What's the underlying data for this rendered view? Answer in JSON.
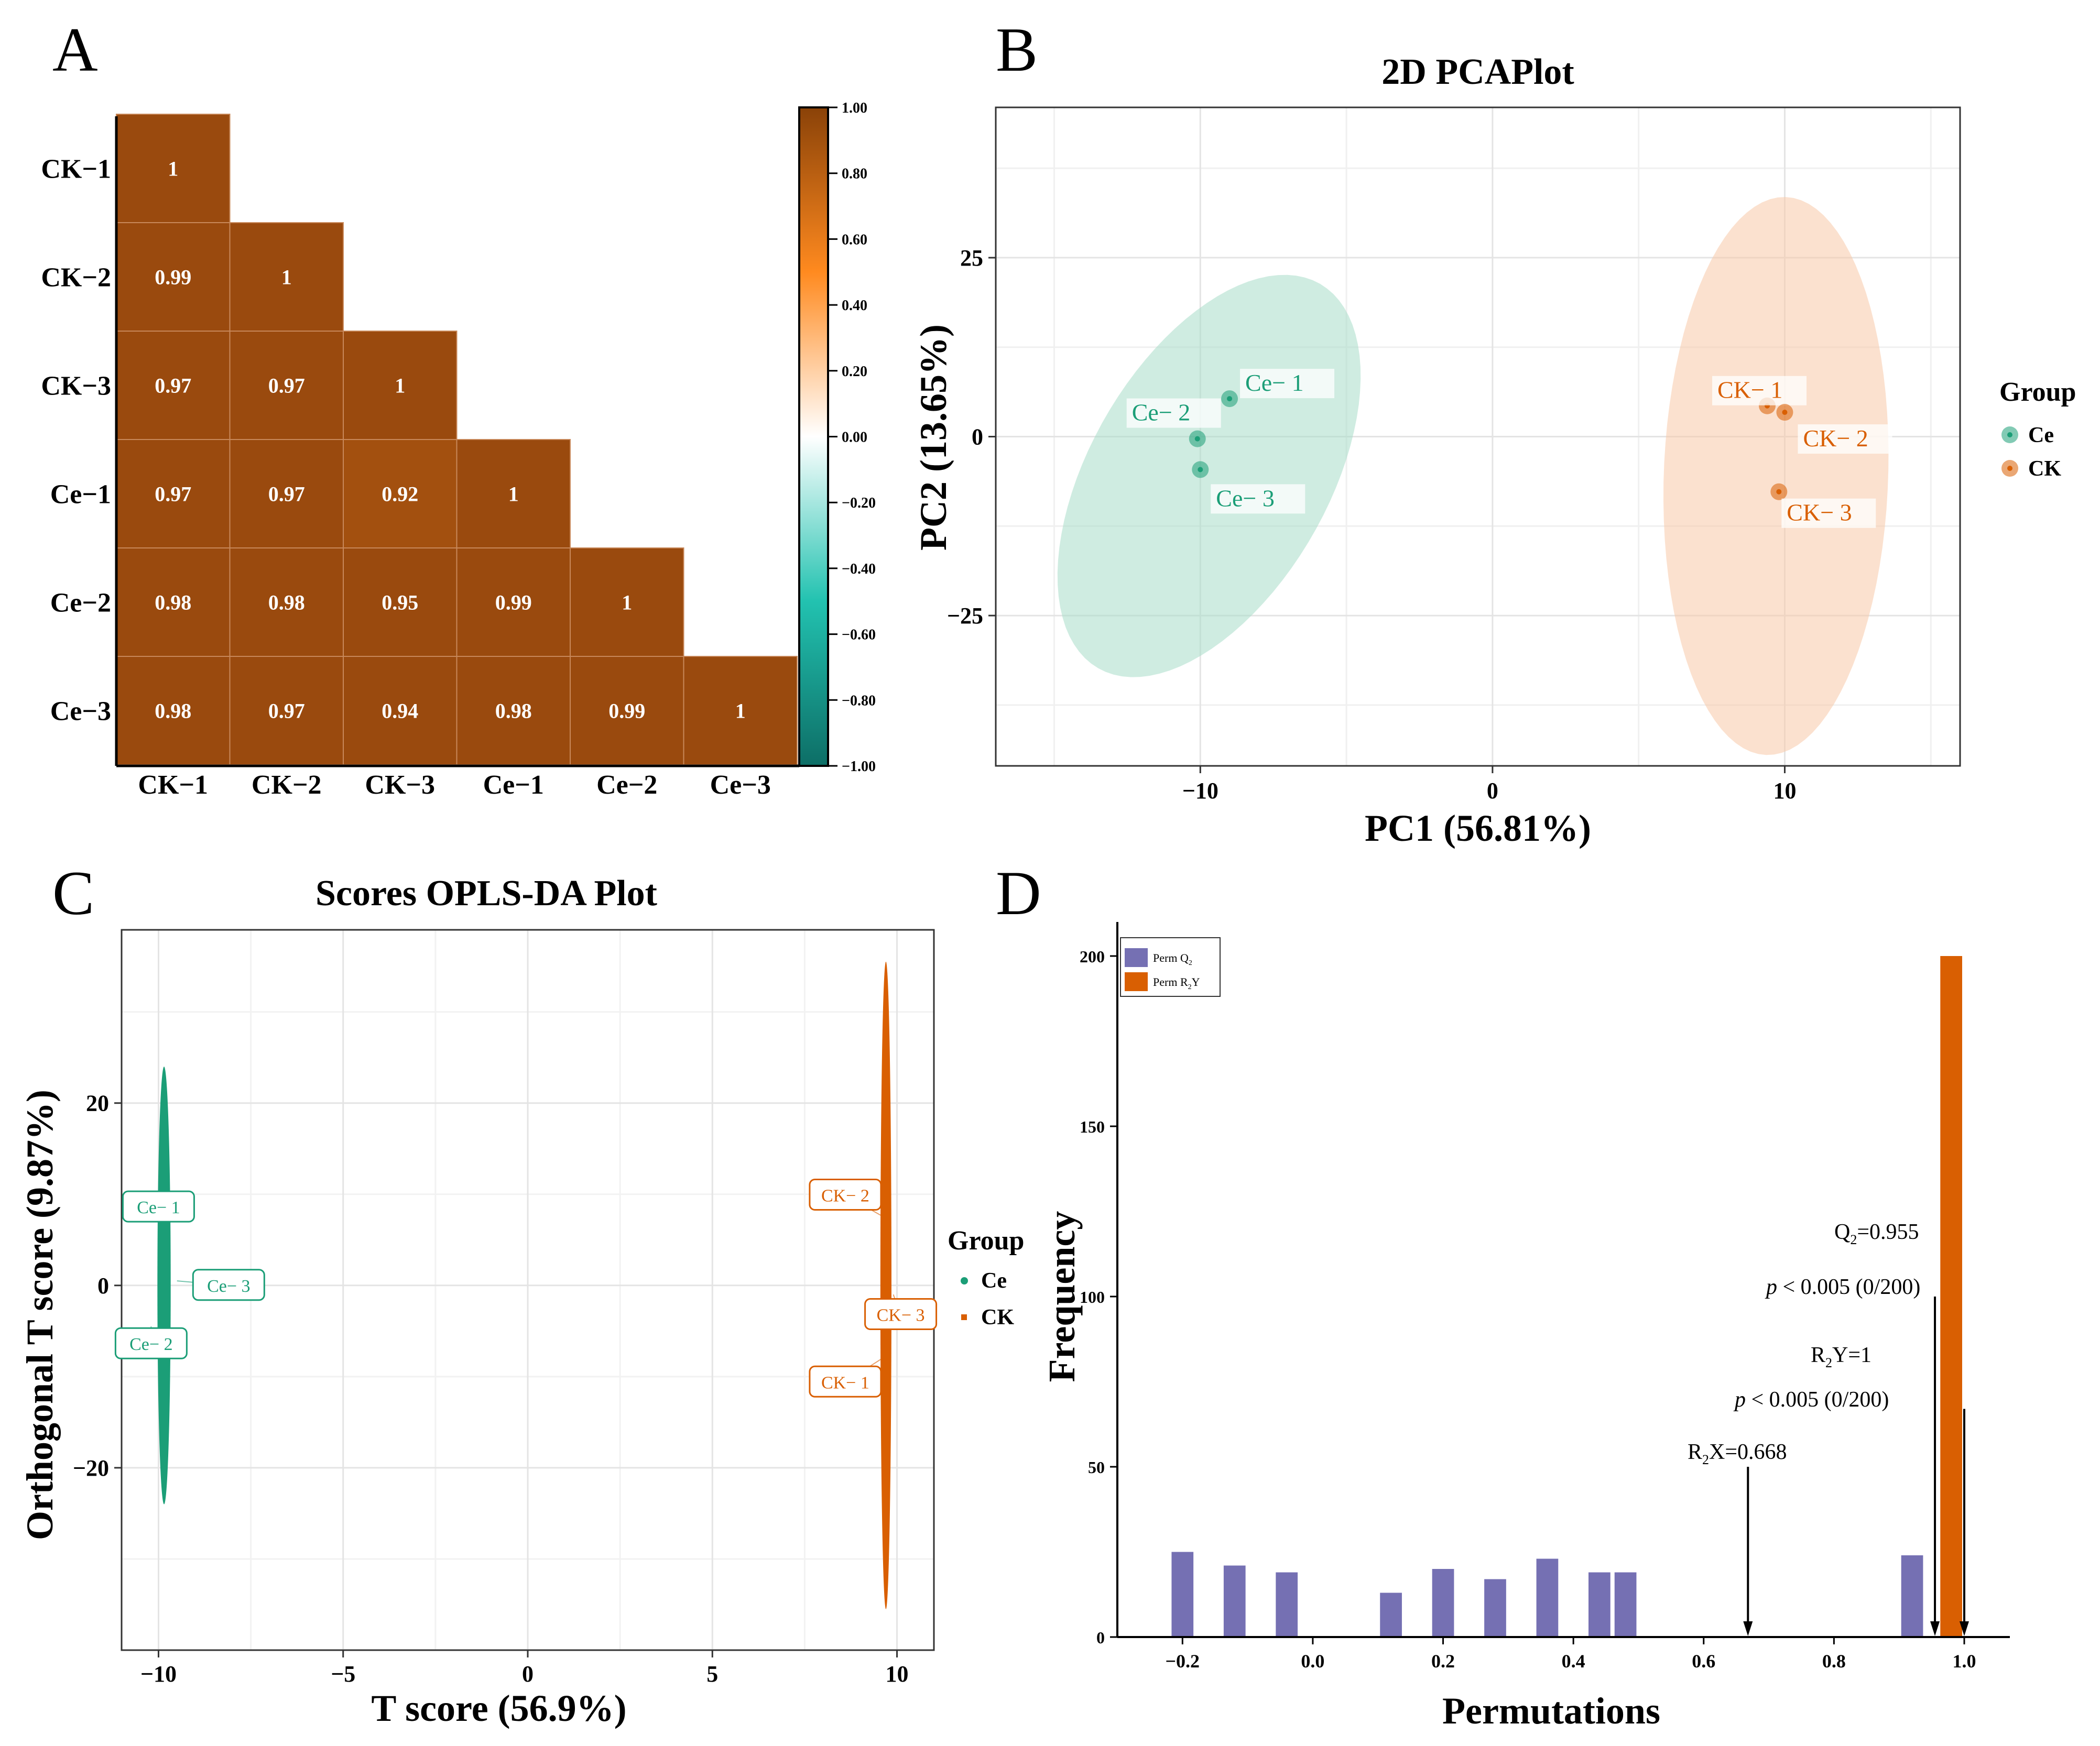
{
  "panels": {
    "A": "A",
    "B": "B",
    "C": "C",
    "D": "D"
  },
  "colors": {
    "cell": "#9a4a0e",
    "cell_dark": "#a3500f",
    "ce_green": "#1b9e77",
    "ck_orange": "#d95f02",
    "ce_light": "#a8dcc8",
    "ck_light": "#f7c9a8",
    "perm_q2": "#7570b3",
    "perm_r2y": "#d95f02"
  },
  "chart_data": [
    {
      "id": "A",
      "type": "heatmap",
      "title": "",
      "labels": [
        "CK−1",
        "CK−2",
        "CK−3",
        "Ce−1",
        "Ce−2",
        "Ce−3"
      ],
      "matrix_lower": [
        [
          "1"
        ],
        [
          "0.99",
          "1"
        ],
        [
          "0.97",
          "0.97",
          "1"
        ],
        [
          "0.97",
          "0.97",
          "0.92",
          "1"
        ],
        [
          "0.98",
          "0.98",
          "0.95",
          "0.99",
          "1"
        ],
        [
          "0.98",
          "0.97",
          "0.94",
          "0.98",
          "0.99",
          "1"
        ]
      ],
      "colorbar": {
        "range": [
          -1,
          1
        ],
        "ticks": [
          "1.00",
          "0.80",
          "0.60",
          "0.40",
          "0.20",
          "0.00",
          "−0.20",
          "−0.40",
          "−0.60",
          "−0.80",
          "−1.00"
        ]
      }
    },
    {
      "id": "B",
      "type": "scatter",
      "title": "2D PCAPlot",
      "xlabel": "PC1 (56.81%)",
      "ylabel": "PC2 (13.65%)",
      "xlim": [
        -17,
        16
      ],
      "ylim": [
        -46,
        46
      ],
      "xticks": [
        -10,
        0,
        10
      ],
      "xtick_labels": [
        "−10",
        "0",
        "10"
      ],
      "yticks": [
        25,
        0,
        -25
      ],
      "ytick_labels": [
        "25",
        "0",
        "−25"
      ],
      "legend_title": "Group",
      "series": [
        {
          "name": "Ce",
          "points": [
            {
              "label": "Ce− 1",
              "x": -9.0,
              "y": 5.3
            },
            {
              "label": "Ce− 2",
              "x": -10.1,
              "y": -0.3
            },
            {
              "label": "Ce− 3",
              "x": -10.0,
              "y": -4.6
            }
          ],
          "ellipse": {
            "cx": -9.7,
            "cy": -5.5,
            "semi_major_data": 31,
            "semi_minor_data": 1.7,
            "angle_deg": 60
          }
        },
        {
          "name": "CK",
          "points": [
            {
              "label": "CK− 1",
              "x": 9.4,
              "y": 4.3
            },
            {
              "label": "CK− 2",
              "x": 10.0,
              "y": 3.4
            },
            {
              "label": "CK− 3",
              "x": 9.8,
              "y": -7.7
            }
          ],
          "ellipse": {
            "cx": 9.7,
            "cy": -5.5,
            "semi_major_data": 39,
            "semi_minor_data": 1.6,
            "angle_deg": 88
          }
        }
      ]
    },
    {
      "id": "C",
      "type": "scatter",
      "title": "Scores OPLS-DA Plot",
      "xlabel": "T score (56.9%)",
      "ylabel": "Orthogonal T score (9.87%)",
      "xlim": [
        -11,
        11
      ],
      "ylim": [
        -40,
        39
      ],
      "xticks": [
        -10,
        -5,
        0,
        5,
        10
      ],
      "xtick_labels": [
        "−10",
        "−5",
        "0",
        "5",
        "10"
      ],
      "yticks": [
        20,
        0,
        -20
      ],
      "ytick_labels": [
        "20",
        "0",
        "−20"
      ],
      "legend_title": "Group",
      "series": [
        {
          "name": "Ce",
          "points": [
            {
              "label": "Ce− 1",
              "x": -10.1,
              "y": 7.0,
              "lx": -10.0,
              "ly": 8.6
            },
            {
              "label": "Ce− 3",
              "x": -9.5,
              "y": 0.5,
              "lx": -8.1,
              "ly": 0.0
            },
            {
              "label": "Ce− 2",
              "x": -10.2,
              "y": -4.5,
              "lx": -10.2,
              "ly": -6.4
            }
          ],
          "ellipse": {
            "cx": -9.85,
            "cy": 0.0,
            "rx": 0.18,
            "ry": 24
          }
        },
        {
          "name": "CK",
          "points": [
            {
              "label": "CK− 2",
              "x": 9.6,
              "y": 7.6,
              "lx": 8.6,
              "ly": 9.9
            },
            {
              "label": "CK− 3",
              "x": 9.9,
              "y": -1.0,
              "lx": 10.1,
              "ly": -3.2
            },
            {
              "label": "CK− 1",
              "x": 9.6,
              "y": -8.0,
              "lx": 8.6,
              "ly": -10.6
            }
          ],
          "ellipse": {
            "cx": 9.7,
            "cy": 0.0,
            "rx": 0.15,
            "ry": 35.5
          }
        }
      ]
    },
    {
      "id": "D",
      "type": "bar",
      "title": "",
      "xlabel": "Permutations",
      "ylabel": "Frequency",
      "xlim": [
        -0.3,
        1.07
      ],
      "ylim": [
        0,
        210
      ],
      "xticks": [
        -0.2,
        0.0,
        0.2,
        0.4,
        0.6,
        0.8,
        1.0
      ],
      "xtick_labels": [
        "−0.2",
        "0.0",
        "0.2",
        "0.4",
        "0.6",
        "0.8",
        "1.0"
      ],
      "yticks": [
        0,
        50,
        100,
        150,
        200
      ],
      "ytick_labels": [
        "0",
        "50",
        "100",
        "150",
        "200"
      ],
      "bin_width": 0.04,
      "series": [
        {
          "name": "Perm Q2",
          "bins": [
            {
              "x": -0.2,
              "count": 25
            },
            {
              "x": -0.12,
              "count": 21
            },
            {
              "x": -0.04,
              "count": 19
            },
            {
              "x": 0.12,
              "count": 13
            },
            {
              "x": 0.2,
              "count": 20
            },
            {
              "x": 0.28,
              "count": 17
            },
            {
              "x": 0.36,
              "count": 23
            },
            {
              "x": 0.44,
              "count": 19
            },
            {
              "x": 0.48,
              "count": 19
            },
            {
              "x": 0.92,
              "count": 24
            }
          ]
        },
        {
          "name": "Perm R2Y",
          "bins": [
            {
              "x": 0.98,
              "count": 200
            }
          ]
        }
      ],
      "legend": [
        {
          "main": "Perm Q",
          "sub": "2",
          "tail": ""
        },
        {
          "main": "Perm R",
          "sub": "2",
          "tail": "Y"
        }
      ],
      "annotations": {
        "q2_label": "Q",
        "q2_sub": "2",
        "q2_value": "=0.955",
        "p_italic": "p",
        "p_text": " < 0.005 (0/200)",
        "r2y_label": "R",
        "r2y_sub": "2",
        "r2y_value": "Y=1",
        "r2x_label": "R",
        "r2x_sub": "2",
        "r2x_value": "X=0.668",
        "arrows": [
          {
            "name": "q2",
            "x": 0.955,
            "from_y": 100,
            "to_y": 0
          },
          {
            "name": "r2y",
            "x": 1.0,
            "from_y": 67,
            "to_y": 0
          },
          {
            "name": "r2x",
            "x": 0.668,
            "from_y": 50,
            "to_y": 0
          }
        ]
      }
    }
  ]
}
